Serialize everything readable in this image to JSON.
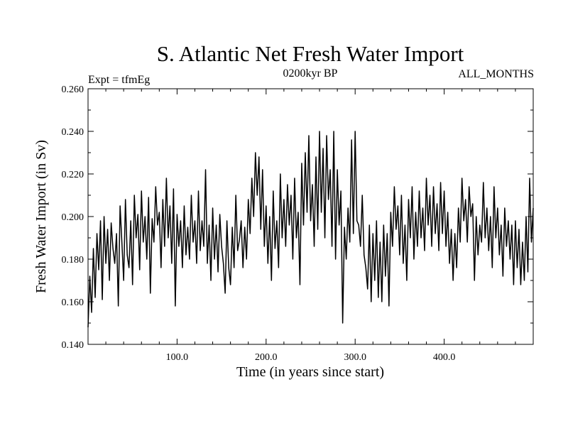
{
  "chart_data": {
    "type": "line",
    "title": "S. Atlantic Net Fresh Water Import",
    "subtitle": "0200kyr BP",
    "label_left": "Expt = tfmEg",
    "label_right": "ALL_MONTHS",
    "xlabel": "Time (in years since start)",
    "ylabel": "Fresh Water Import (in Sv)",
    "xlim": [
      0,
      500
    ],
    "ylim": [
      0.14,
      0.26
    ],
    "xticks": [
      100,
      200,
      300,
      400
    ],
    "xtick_labels": [
      "100.0",
      "200.0",
      "300.0",
      "400.0"
    ],
    "yticks": [
      0.14,
      0.16,
      0.18,
      0.2,
      0.22,
      0.24,
      0.26
    ],
    "ytick_labels": [
      "0.140",
      "0.160",
      "0.180",
      "0.200",
      "0.220",
      "0.240",
      "0.260"
    ],
    "series": [
      {
        "name": "fresh water import",
        "color": "#000000",
        "x": [
          0,
          2,
          4,
          6,
          8,
          10,
          12,
          14,
          16,
          18,
          20,
          22,
          24,
          26,
          28,
          30,
          32,
          34,
          36,
          38,
          40,
          42,
          44,
          46,
          48,
          50,
          52,
          54,
          56,
          58,
          60,
          62,
          64,
          66,
          68,
          70,
          72,
          74,
          76,
          78,
          80,
          82,
          84,
          86,
          88,
          90,
          92,
          94,
          96,
          98,
          100,
          102,
          104,
          106,
          108,
          110,
          112,
          114,
          116,
          118,
          120,
          122,
          124,
          126,
          128,
          130,
          132,
          134,
          136,
          138,
          140,
          142,
          144,
          146,
          148,
          150,
          152,
          154,
          156,
          158,
          160,
          162,
          164,
          166,
          168,
          170,
          172,
          174,
          176,
          178,
          180,
          182,
          184,
          186,
          188,
          190,
          192,
          194,
          196,
          198,
          200,
          202,
          204,
          206,
          208,
          210,
          212,
          214,
          216,
          218,
          220,
          222,
          224,
          226,
          228,
          230,
          232,
          234,
          236,
          238,
          240,
          242,
          244,
          246,
          248,
          250,
          252,
          254,
          256,
          258,
          260,
          262,
          264,
          266,
          268,
          270,
          272,
          274,
          276,
          278,
          280,
          282,
          284,
          286,
          288,
          290,
          292,
          294,
          296,
          298,
          300,
          302,
          304,
          306,
          308,
          310,
          312,
          314,
          316,
          318,
          320,
          322,
          324,
          326,
          328,
          330,
          332,
          334,
          336,
          338,
          340,
          342,
          344,
          346,
          348,
          350,
          352,
          354,
          356,
          358,
          360,
          362,
          364,
          366,
          368,
          370,
          372,
          374,
          376,
          378,
          380,
          382,
          384,
          386,
          388,
          390,
          392,
          394,
          396,
          398,
          400,
          402,
          404,
          406,
          408,
          410,
          412,
          414,
          416,
          418,
          420,
          422,
          424,
          426,
          428,
          430,
          432,
          434,
          436,
          438,
          440,
          442,
          444,
          446,
          448,
          450,
          452,
          454,
          456,
          458,
          460,
          462,
          464,
          466,
          468,
          470,
          472,
          474,
          476,
          478,
          480,
          482,
          484,
          486,
          488,
          490,
          492,
          494,
          496,
          498,
          500
        ],
        "y": [
          0.148,
          0.172,
          0.155,
          0.185,
          0.162,
          0.192,
          0.175,
          0.198,
          0.161,
          0.2,
          0.178,
          0.194,
          0.17,
          0.197,
          0.185,
          0.178,
          0.192,
          0.158,
          0.205,
          0.188,
          0.17,
          0.208,
          0.182,
          0.176,
          0.198,
          0.168,
          0.21,
          0.19,
          0.201,
          0.175,
          0.212,
          0.188,
          0.2,
          0.18,
          0.209,
          0.164,
          0.199,
          0.188,
          0.214,
          0.196,
          0.202,
          0.176,
          0.208,
          0.186,
          0.218,
          0.19,
          0.205,
          0.178,
          0.213,
          0.158,
          0.201,
          0.186,
          0.198,
          0.176,
          0.205,
          0.182,
          0.195,
          0.18,
          0.21,
          0.188,
          0.198,
          0.178,
          0.212,
          0.184,
          0.198,
          0.186,
          0.222,
          0.178,
          0.196,
          0.17,
          0.204,
          0.18,
          0.196,
          0.174,
          0.201,
          0.186,
          0.178,
          0.164,
          0.198,
          0.176,
          0.168,
          0.195,
          0.176,
          0.21,
          0.184,
          0.189,
          0.198,
          0.176,
          0.195,
          0.18,
          0.208,
          0.192,
          0.218,
          0.2,
          0.23,
          0.21,
          0.228,
          0.194,
          0.222,
          0.186,
          0.205,
          0.178,
          0.2,
          0.17,
          0.212,
          0.185,
          0.198,
          0.176,
          0.22,
          0.19,
          0.208,
          0.186,
          0.215,
          0.196,
          0.21,
          0.18,
          0.218,
          0.19,
          0.202,
          0.168,
          0.225,
          0.196,
          0.23,
          0.202,
          0.238,
          0.198,
          0.215,
          0.186,
          0.228,
          0.194,
          0.24,
          0.202,
          0.232,
          0.19,
          0.238,
          0.208,
          0.222,
          0.186,
          0.24,
          0.18,
          0.222,
          0.196,
          0.212,
          0.15,
          0.195,
          0.18,
          0.204,
          0.188,
          0.236,
          0.192,
          0.24,
          0.198,
          0.196,
          0.186,
          0.21,
          0.182,
          0.176,
          0.166,
          0.196,
          0.16,
          0.192,
          0.17,
          0.198,
          0.162,
          0.188,
          0.16,
          0.196,
          0.172,
          0.192,
          0.158,
          0.202,
          0.186,
          0.214,
          0.194,
          0.205,
          0.182,
          0.21,
          0.178,
          0.196,
          0.17,
          0.208,
          0.19,
          0.214,
          0.18,
          0.202,
          0.186,
          0.212,
          0.19,
          0.204,
          0.184,
          0.218,
          0.196,
          0.21,
          0.186,
          0.214,
          0.192,
          0.206,
          0.184,
          0.216,
          0.192,
          0.212,
          0.186,
          0.202,
          0.178,
          0.194,
          0.17,
          0.192,
          0.176,
          0.204,
          0.188,
          0.218,
          0.198,
          0.208,
          0.188,
          0.214,
          0.2,
          0.206,
          0.17,
          0.2,
          0.182,
          0.196,
          0.188,
          0.216,
          0.19,
          0.204,
          0.184,
          0.2,
          0.176,
          0.214,
          0.19,
          0.204,
          0.182,
          0.196,
          0.172,
          0.204,
          0.186,
          0.198,
          0.18,
          0.196,
          0.168,
          0.198,
          0.176,
          0.194,
          0.168,
          0.188,
          0.17,
          0.2,
          0.174,
          0.218,
          0.188,
          0.204
        ]
      }
    ]
  }
}
